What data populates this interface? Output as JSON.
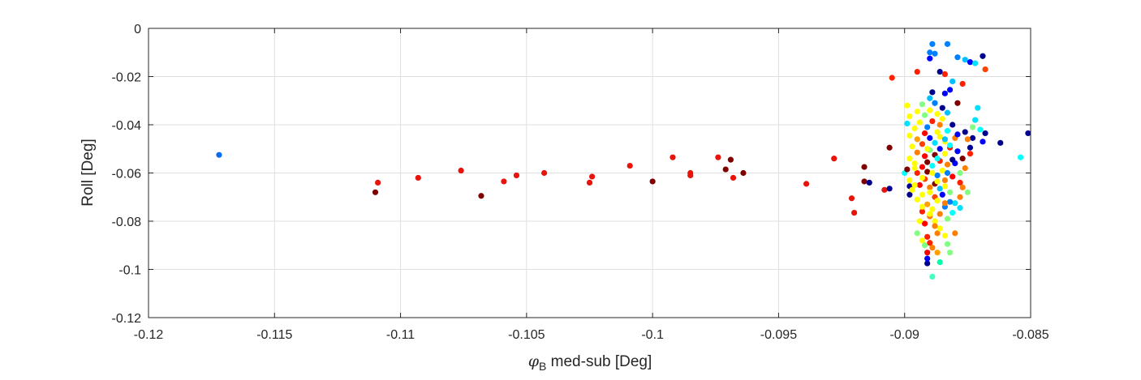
{
  "chart_data": {
    "type": "scatter",
    "title": "",
    "xlabel_symbol": "φ",
    "xlabel_subscript": "B",
    "xlabel_rest": " med-sub [Deg]",
    "ylabel": "Roll [Deg]",
    "xlim": [
      -0.12,
      -0.085
    ],
    "ylim": [
      -0.12,
      0
    ],
    "xticks": [
      -0.12,
      -0.115,
      -0.11,
      -0.105,
      -0.1,
      -0.095,
      -0.09,
      -0.085
    ],
    "xtick_labels": [
      "-0.12",
      "-0.115",
      "-0.11",
      "-0.105",
      "-0.1",
      "-0.095",
      "-0.09",
      "-0.085"
    ],
    "yticks": [
      0,
      -0.02,
      -0.04,
      -0.06,
      -0.08,
      -0.1,
      -0.12
    ],
    "ytick_labels": [
      "0",
      "-0.02",
      "-0.04",
      "-0.06",
      "-0.08",
      "-0.1",
      "-0.12"
    ],
    "grid": true,
    "colormap": [
      "#00008f",
      "#0000ff",
      "#0080ff",
      "#00ffff",
      "#80ff80",
      "#ffff00",
      "#ff8000",
      "#ff0000",
      "#800000"
    ],
    "cluster": {
      "x_center": -0.0889,
      "y_center": -0.055,
      "note_hidden": true
    },
    "points": [
      {
        "x": -0.1172,
        "y": -0.0525,
        "color": "#0a6cf0"
      },
      {
        "x": -0.111,
        "y": -0.068,
        "color": "#800000"
      },
      {
        "x": -0.1109,
        "y": -0.064,
        "color": "#e8140c"
      },
      {
        "x": -0.1093,
        "y": -0.062,
        "color": "#e8140c"
      },
      {
        "x": -0.1076,
        "y": -0.059,
        "color": "#e8140c"
      },
      {
        "x": -0.1068,
        "y": -0.0695,
        "color": "#800000"
      },
      {
        "x": -0.1059,
        "y": -0.0635,
        "color": "#e8140c"
      },
      {
        "x": -0.1054,
        "y": -0.061,
        "color": "#e8140c"
      },
      {
        "x": -0.1043,
        "y": -0.06,
        "color": "#e8140c"
      },
      {
        "x": -0.1025,
        "y": -0.064,
        "color": "#e8140c"
      },
      {
        "x": -0.1024,
        "y": -0.0615,
        "color": "#e8140c"
      },
      {
        "x": -0.1009,
        "y": -0.057,
        "color": "#e8140c"
      },
      {
        "x": -0.1,
        "y": -0.0635,
        "color": "#800000"
      },
      {
        "x": -0.0992,
        "y": -0.0535,
        "color": "#e8140c"
      },
      {
        "x": -0.0985,
        "y": -0.06,
        "color": "#e8140c"
      },
      {
        "x": -0.0985,
        "y": -0.061,
        "color": "#e8140c"
      },
      {
        "x": -0.0974,
        "y": -0.0535,
        "color": "#e8140c"
      },
      {
        "x": -0.0971,
        "y": -0.0585,
        "color": "#800000"
      },
      {
        "x": -0.0969,
        "y": -0.0545,
        "color": "#800000"
      },
      {
        "x": -0.0968,
        "y": -0.062,
        "color": "#e8140c"
      },
      {
        "x": -0.0964,
        "y": -0.06,
        "color": "#800000"
      },
      {
        "x": -0.0939,
        "y": -0.0645,
        "color": "#e8140c"
      },
      {
        "x": -0.0928,
        "y": -0.054,
        "color": "#e8140c"
      },
      {
        "x": -0.0921,
        "y": -0.0705,
        "color": "#e8140c"
      },
      {
        "x": -0.092,
        "y": -0.0765,
        "color": "#e8140c"
      },
      {
        "x": -0.0916,
        "y": -0.0575,
        "color": "#800000"
      },
      {
        "x": -0.0916,
        "y": -0.0635,
        "color": "#800000"
      },
      {
        "x": -0.0914,
        "y": -0.064,
        "color": "#00008f"
      },
      {
        "x": -0.0905,
        "y": -0.0205,
        "color": "#ff2000"
      },
      {
        "x": -0.0906,
        "y": -0.0495,
        "color": "#800000"
      },
      {
        "x": -0.0908,
        "y": -0.067,
        "color": "#e8140c"
      },
      {
        "x": -0.0906,
        "y": -0.0665,
        "color": "#00008f"
      },
      {
        "x": -0.0899,
        "y": -0.0395,
        "color": "#00e0ff"
      },
      {
        "x": -0.09,
        "y": -0.06,
        "color": "#00ffff"
      },
      {
        "x": -0.0898,
        "y": -0.069,
        "color": "#00008f"
      },
      {
        "x": -0.0898,
        "y": -0.0655,
        "color": "#00008f"
      },
      {
        "x": -0.0895,
        "y": -0.018,
        "color": "#ff2000"
      },
      {
        "x": -0.089,
        "y": -0.01,
        "color": "#0080ff"
      },
      {
        "x": -0.0889,
        "y": -0.0065,
        "color": "#0080ff"
      },
      {
        "x": -0.0888,
        "y": -0.0105,
        "color": "#0080ff"
      },
      {
        "x": -0.0883,
        "y": -0.0065,
        "color": "#0080ff"
      },
      {
        "x": -0.089,
        "y": -0.0125,
        "color": "#0000ff"
      },
      {
        "x": -0.0886,
        "y": -0.018,
        "color": "#00008f"
      },
      {
        "x": -0.0884,
        "y": -0.019,
        "color": "#ff2000"
      },
      {
        "x": -0.0879,
        "y": -0.012,
        "color": "#0080ff"
      },
      {
        "x": -0.0876,
        "y": -0.013,
        "color": "#00c0ff"
      },
      {
        "x": -0.0874,
        "y": -0.014,
        "color": "#0000ff"
      },
      {
        "x": -0.0872,
        "y": -0.0145,
        "color": "#00e0ff"
      },
      {
        "x": -0.0869,
        "y": -0.0115,
        "color": "#00008f"
      },
      {
        "x": -0.0868,
        "y": -0.017,
        "color": "#ff4000"
      },
      {
        "x": -0.0881,
        "y": -0.022,
        "color": "#00c0ff"
      },
      {
        "x": -0.0882,
        "y": -0.0255,
        "color": "#0000ff"
      },
      {
        "x": -0.0884,
        "y": -0.027,
        "color": "#0000ff"
      },
      {
        "x": -0.0877,
        "y": -0.023,
        "color": "#ff2000"
      },
      {
        "x": -0.0889,
        "y": -0.0265,
        "color": "#00008f"
      },
      {
        "x": -0.089,
        "y": -0.029,
        "color": "#00c0ff"
      },
      {
        "x": -0.0888,
        "y": -0.031,
        "color": "#00c0ff"
      },
      {
        "x": -0.0879,
        "y": -0.031,
        "color": "#800000"
      },
      {
        "x": -0.0871,
        "y": -0.033,
        "color": "#00e0ff"
      },
      {
        "x": -0.0872,
        "y": -0.038,
        "color": "#00e0ff"
      },
      {
        "x": -0.0873,
        "y": -0.041,
        "color": "#80ff80"
      },
      {
        "x": -0.087,
        "y": -0.042,
        "color": "#00ffff"
      },
      {
        "x": -0.0862,
        "y": -0.0475,
        "color": "#00008f"
      },
      {
        "x": -0.0851,
        "y": -0.0435,
        "color": "#00008f"
      },
      {
        "x": -0.0854,
        "y": -0.0535,
        "color": "#00ffff"
      },
      {
        "x": -0.0868,
        "y": -0.0435,
        "color": "#00008f"
      },
      {
        "x": -0.0869,
        "y": -0.047,
        "color": "#0000ff"
      },
      {
        "x": -0.0873,
        "y": -0.0455,
        "color": "#00008f"
      },
      {
        "x": -0.0874,
        "y": -0.0495,
        "color": "#00008f"
      },
      {
        "x": -0.0876,
        "y": -0.043,
        "color": "#00008f"
      },
      {
        "x": -0.0875,
        "y": -0.046,
        "color": "#ff8000"
      },
      {
        "x": -0.0874,
        "y": -0.052,
        "color": "#ff2000"
      },
      {
        "x": -0.0877,
        "y": -0.054,
        "color": "#800000"
      },
      {
        "x": -0.0876,
        "y": -0.058,
        "color": "#ff8000"
      },
      {
        "x": -0.0878,
        "y": -0.06,
        "color": "#80ff80"
      },
      {
        "x": -0.088,
        "y": -0.056,
        "color": "#0000ff"
      },
      {
        "x": -0.0879,
        "y": -0.051,
        "color": "#0000ff"
      },
      {
        "x": -0.0878,
        "y": -0.064,
        "color": "#ff2000"
      },
      {
        "x": -0.0877,
        "y": -0.066,
        "color": "#ff8000"
      },
      {
        "x": -0.0875,
        "y": -0.068,
        "color": "#80ff80"
      },
      {
        "x": -0.0878,
        "y": -0.07,
        "color": "#ff8000"
      },
      {
        "x": -0.088,
        "y": -0.0725,
        "color": "#00e0ff"
      },
      {
        "x": -0.0878,
        "y": -0.0745,
        "color": "#00e0ff"
      },
      {
        "x": -0.0881,
        "y": -0.0765,
        "color": "#00ffff"
      },
      {
        "x": -0.0882,
        "y": -0.072,
        "color": "#0080ff"
      },
      {
        "x": -0.088,
        "y": -0.085,
        "color": "#ff8000"
      },
      {
        "x": -0.0883,
        "y": -0.0895,
        "color": "#80ff80"
      },
      {
        "x": -0.0882,
        "y": -0.093,
        "color": "#80ff80"
      },
      {
        "x": -0.0886,
        "y": -0.097,
        "color": "#00ffaa"
      },
      {
        "x": -0.0889,
        "y": -0.103,
        "color": "#40ffc0"
      },
      {
        "x": -0.0891,
        "y": -0.0975,
        "color": "#00008f"
      },
      {
        "x": -0.0891,
        "y": -0.0955,
        "color": "#0000ff"
      },
      {
        "x": -0.0891,
        "y": -0.093,
        "color": "#ff0000"
      },
      {
        "x": -0.0889,
        "y": -0.091,
        "color": "#ff8000"
      },
      {
        "x": -0.0893,
        "y": -0.088,
        "color": "#ffff00"
      },
      {
        "x": -0.0895,
        "y": -0.085,
        "color": "#80ff80"
      },
      {
        "x": -0.0891,
        "y": -0.0865,
        "color": "#ff2000"
      },
      {
        "x": -0.0887,
        "y": -0.085,
        "color": "#ff8000"
      },
      {
        "x": -0.0886,
        "y": -0.083,
        "color": "#ffff00"
      },
      {
        "x": -0.0892,
        "y": -0.081,
        "color": "#ff0000"
      },
      {
        "x": -0.0888,
        "y": -0.08,
        "color": "#ffff00"
      },
      {
        "x": -0.089,
        "y": -0.078,
        "color": "#ff8000"
      },
      {
        "x": -0.0893,
        "y": -0.076,
        "color": "#ff2000"
      },
      {
        "x": -0.0889,
        "y": -0.075,
        "color": "#ffff00"
      },
      {
        "x": -0.0886,
        "y": -0.077,
        "color": "#ff8000"
      },
      {
        "x": -0.0884,
        "y": -0.074,
        "color": "#0080ff"
      },
      {
        "x": -0.0891,
        "y": -0.073,
        "color": "#ffa000"
      },
      {
        "x": -0.0895,
        "y": -0.071,
        "color": "#ffff00"
      },
      {
        "x": -0.0888,
        "y": -0.07,
        "color": "#ff4000"
      },
      {
        "x": -0.0893,
        "y": -0.069,
        "color": "#ffff00"
      },
      {
        "x": -0.0885,
        "y": -0.069,
        "color": "#0000ff"
      },
      {
        "x": -0.0897,
        "y": -0.067,
        "color": "#ffff00"
      },
      {
        "x": -0.089,
        "y": -0.066,
        "color": "#ff8000"
      },
      {
        "x": -0.0886,
        "y": -0.0665,
        "color": "#00c0ff"
      },
      {
        "x": -0.0882,
        "y": -0.068,
        "color": "#80ff80"
      },
      {
        "x": -0.0894,
        "y": -0.065,
        "color": "#ff0000"
      },
      {
        "x": -0.0888,
        "y": -0.0645,
        "color": "#800000"
      },
      {
        "x": -0.0884,
        "y": -0.063,
        "color": "#ff8000"
      },
      {
        "x": -0.0898,
        "y": -0.063,
        "color": "#ffff00"
      },
      {
        "x": -0.0892,
        "y": -0.0625,
        "color": "#ff4000"
      },
      {
        "x": -0.0887,
        "y": -0.061,
        "color": "#0080ff"
      },
      {
        "x": -0.0881,
        "y": -0.0615,
        "color": "#ff0000"
      },
      {
        "x": -0.0895,
        "y": -0.06,
        "color": "#ff2000"
      },
      {
        "x": -0.0891,
        "y": -0.0595,
        "color": "#800000"
      },
      {
        "x": -0.0885,
        "y": -0.059,
        "color": "#ffff00"
      },
      {
        "x": -0.0899,
        "y": -0.0585,
        "color": "#800000"
      },
      {
        "x": -0.0893,
        "y": -0.0575,
        "color": "#ff0000"
      },
      {
        "x": -0.0889,
        "y": -0.057,
        "color": "#00ffff"
      },
      {
        "x": -0.0883,
        "y": -0.0565,
        "color": "#ff8000"
      },
      {
        "x": -0.0896,
        "y": -0.056,
        "color": "#ffff00"
      },
      {
        "x": -0.0891,
        "y": -0.0555,
        "color": "#800000"
      },
      {
        "x": -0.0886,
        "y": -0.055,
        "color": "#ff2000"
      },
      {
        "x": -0.0881,
        "y": -0.0545,
        "color": "#00008f"
      },
      {
        "x": -0.0898,
        "y": -0.054,
        "color": "#ffff00"
      },
      {
        "x": -0.0892,
        "y": -0.053,
        "color": "#ff0000"
      },
      {
        "x": -0.0888,
        "y": -0.0525,
        "color": "#800000"
      },
      {
        "x": -0.0884,
        "y": -0.052,
        "color": "#ffff00"
      },
      {
        "x": -0.0895,
        "y": -0.0515,
        "color": "#ff8000"
      },
      {
        "x": -0.089,
        "y": -0.0505,
        "color": "#80ff80"
      },
      {
        "x": -0.0886,
        "y": -0.05,
        "color": "#0000ff"
      },
      {
        "x": -0.0882,
        "y": -0.0495,
        "color": "#ff2000"
      },
      {
        "x": -0.0897,
        "y": -0.049,
        "color": "#ffff00"
      },
      {
        "x": -0.0893,
        "y": -0.048,
        "color": "#ff4000"
      },
      {
        "x": -0.0888,
        "y": -0.0475,
        "color": "#00e0ff"
      },
      {
        "x": -0.0884,
        "y": -0.047,
        "color": "#ffff00"
      },
      {
        "x": -0.0895,
        "y": -0.046,
        "color": "#ffa000"
      },
      {
        "x": -0.089,
        "y": -0.0455,
        "color": "#0000ff"
      },
      {
        "x": -0.0886,
        "y": -0.045,
        "color": "#ffff00"
      },
      {
        "x": -0.088,
        "y": -0.0455,
        "color": "#ff8000"
      },
      {
        "x": -0.0898,
        "y": -0.0445,
        "color": "#ffff00"
      },
      {
        "x": -0.0892,
        "y": -0.0435,
        "color": "#ff0000"
      },
      {
        "x": -0.0887,
        "y": -0.043,
        "color": "#ffff00"
      },
      {
        "x": -0.0883,
        "y": -0.0425,
        "color": "#00ffff"
      },
      {
        "x": -0.0896,
        "y": -0.0415,
        "color": "#ffff00"
      },
      {
        "x": -0.0891,
        "y": -0.041,
        "color": "#0080ff"
      },
      {
        "x": -0.0886,
        "y": -0.04,
        "color": "#ff8000"
      },
      {
        "x": -0.0881,
        "y": -0.04,
        "color": "#00008f"
      },
      {
        "x": -0.0894,
        "y": -0.039,
        "color": "#ffff00"
      },
      {
        "x": -0.0889,
        "y": -0.0385,
        "color": "#ff2000"
      },
      {
        "x": -0.0885,
        "y": -0.0375,
        "color": "#ffff00"
      },
      {
        "x": -0.0898,
        "y": -0.0365,
        "color": "#ffff00"
      },
      {
        "x": -0.0892,
        "y": -0.036,
        "color": "#80ff80"
      },
      {
        "x": -0.0887,
        "y": -0.0355,
        "color": "#ffff00"
      },
      {
        "x": -0.0883,
        "y": -0.035,
        "color": "#00c0ff"
      },
      {
        "x": -0.0895,
        "y": -0.0345,
        "color": "#ffff00"
      },
      {
        "x": -0.089,
        "y": -0.034,
        "color": "#ffff00"
      },
      {
        "x": -0.0885,
        "y": -0.033,
        "color": "#00008f"
      },
      {
        "x": -0.0899,
        "y": -0.032,
        "color": "#ffff00"
      },
      {
        "x": -0.0893,
        "y": -0.0315,
        "color": "#80ff80"
      },
      {
        "x": -0.0888,
        "y": -0.031,
        "color": "#0080ff"
      },
      {
        "x": -0.0884,
        "y": -0.046,
        "color": "#00c0ff"
      },
      {
        "x": -0.0879,
        "y": -0.044,
        "color": "#0000ff"
      },
      {
        "x": -0.0882,
        "y": -0.0485,
        "color": "#00ffff"
      },
      {
        "x": -0.0891,
        "y": -0.05,
        "color": "#ffff00"
      },
      {
        "x": -0.0887,
        "y": -0.054,
        "color": "#00ffff"
      },
      {
        "x": -0.0896,
        "y": -0.058,
        "color": "#ffff00"
      },
      {
        "x": -0.0889,
        "y": -0.06,
        "color": "#ffff00"
      },
      {
        "x": -0.0883,
        "y": -0.06,
        "color": "#0080ff"
      },
      {
        "x": -0.0893,
        "y": -0.062,
        "color": "#ffff00"
      },
      {
        "x": -0.0887,
        "y": -0.0635,
        "color": "#ffff00"
      },
      {
        "x": -0.0896,
        "y": -0.065,
        "color": "#ffff00"
      },
      {
        "x": -0.0884,
        "y": -0.0655,
        "color": "#ffff00"
      },
      {
        "x": -0.089,
        "y": -0.068,
        "color": "#ffff00"
      },
      {
        "x": -0.0887,
        "y": -0.0715,
        "color": "#ffff00"
      },
      {
        "x": -0.0893,
        "y": -0.074,
        "color": "#ffff00"
      },
      {
        "x": -0.0884,
        "y": -0.0725,
        "color": "#ff8000"
      },
      {
        "x": -0.089,
        "y": -0.077,
        "color": "#ffff00"
      },
      {
        "x": -0.0883,
        "y": -0.079,
        "color": "#80ff80"
      },
      {
        "x": -0.0888,
        "y": -0.082,
        "color": "#ff8000"
      },
      {
        "x": -0.0894,
        "y": -0.08,
        "color": "#ffff00"
      },
      {
        "x": -0.0884,
        "y": -0.086,
        "color": "#ffff00"
      },
      {
        "x": -0.089,
        "y": -0.089,
        "color": "#ff2000"
      },
      {
        "x": -0.0887,
        "y": -0.093,
        "color": "#ffa000"
      },
      {
        "x": -0.0892,
        "y": -0.09,
        "color": "#80ff80"
      }
    ]
  }
}
